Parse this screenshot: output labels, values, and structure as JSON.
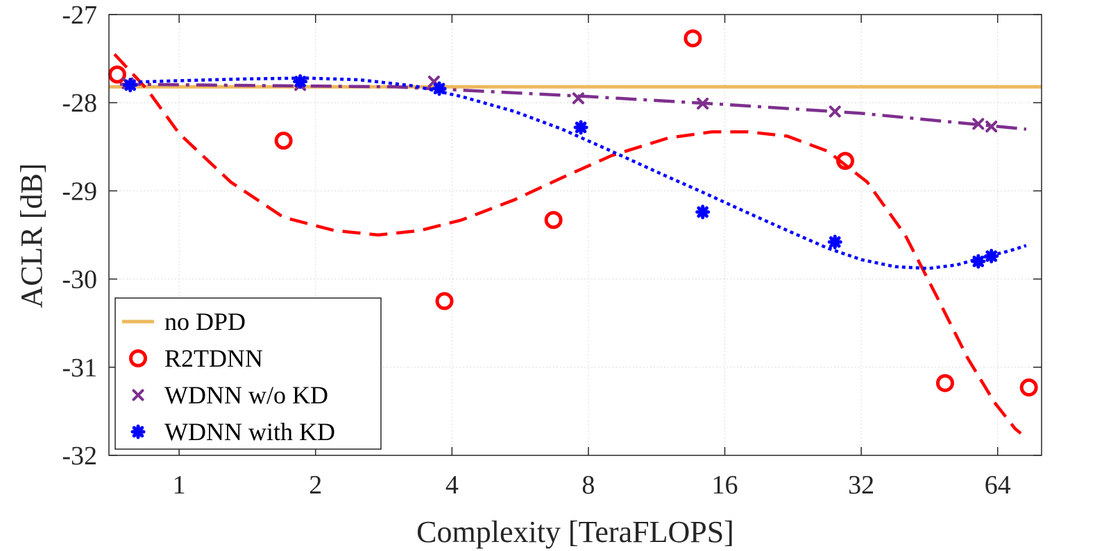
{
  "chart_data": {
    "type": "scatter",
    "title": "",
    "xlabel": "Complexity [TeraFLOPS]",
    "ylabel": "ACLR [dB]",
    "xscale": "log2",
    "xlim": [
      0.7,
      80
    ],
    "ylim": [
      -32,
      -27
    ],
    "xticks": [
      1,
      2,
      4,
      8,
      16,
      32,
      64
    ],
    "yticks": [
      -27,
      -28,
      -29,
      -30,
      -31,
      -32
    ],
    "grid": true,
    "legend_position": "bottom-left",
    "series": [
      {
        "name": "no DPD",
        "kind": "hline",
        "color": "#EDB95E",
        "value": -27.82
      },
      {
        "name": "R2TDNN",
        "kind": "markers",
        "marker": "circle",
        "color": "#FF0000",
        "points": [
          [
            0.73,
            -27.68
          ],
          [
            1.7,
            -28.43
          ],
          [
            3.85,
            -30.25
          ],
          [
            6.7,
            -29.33
          ],
          [
            13.6,
            -27.27
          ],
          [
            29.5,
            -28.66
          ],
          [
            49,
            -31.18
          ],
          [
            75,
            -31.23
          ]
        ],
        "fit": {
          "style": "dashed",
          "points": [
            [
              0.72,
              -27.45
            ],
            [
              0.85,
              -27.85
            ],
            [
              1.0,
              -28.35
            ],
            [
              1.3,
              -28.9
            ],
            [
              1.7,
              -29.3
            ],
            [
              2.2,
              -29.45
            ],
            [
              2.75,
              -29.5
            ],
            [
              3.4,
              -29.45
            ],
            [
              4.2,
              -29.33
            ],
            [
              5.5,
              -29.1
            ],
            [
              7.0,
              -28.85
            ],
            [
              9.0,
              -28.6
            ],
            [
              12.0,
              -28.4
            ],
            [
              15.0,
              -28.33
            ],
            [
              18.0,
              -28.33
            ],
            [
              22.0,
              -28.38
            ],
            [
              27.0,
              -28.55
            ],
            [
              33.0,
              -28.9
            ],
            [
              40.0,
              -29.5
            ],
            [
              47.0,
              -30.2
            ],
            [
              55.0,
              -30.9
            ],
            [
              63.0,
              -31.4
            ],
            [
              70.0,
              -31.7
            ],
            [
              72.0,
              -31.75
            ]
          ]
        }
      },
      {
        "name": "WDNN w/o KD",
        "kind": "markers",
        "marker": "x",
        "color": "#7E2F8E",
        "points": [
          [
            0.77,
            -27.78
          ],
          [
            1.85,
            -27.8
          ],
          [
            3.65,
            -27.76
          ],
          [
            7.6,
            -27.95
          ],
          [
            14.3,
            -28.01
          ],
          [
            28,
            -28.1
          ],
          [
            58,
            -28.24
          ],
          [
            62,
            -28.27
          ]
        ],
        "fit": {
          "style": "dashdot",
          "points": [
            [
              0.74,
              -27.79
            ],
            [
              3.0,
              -27.82
            ],
            [
              8.0,
              -27.93
            ],
            [
              16.0,
              -28.02
            ],
            [
              32.0,
              -28.12
            ],
            [
              74.0,
              -28.3
            ]
          ]
        }
      },
      {
        "name": "WDNN with KD",
        "kind": "markers",
        "marker": "asterisk",
        "color": "#0000FF",
        "points": [
          [
            0.78,
            -27.8
          ],
          [
            1.85,
            -27.76
          ],
          [
            3.75,
            -27.84
          ],
          [
            7.7,
            -28.28
          ],
          [
            14.3,
            -29.24
          ],
          [
            28,
            -29.58
          ],
          [
            58,
            -29.8
          ],
          [
            62,
            -29.74
          ]
        ],
        "fit": {
          "style": "dotted",
          "points": [
            [
              0.76,
              -27.77
            ],
            [
              1.0,
              -27.75
            ],
            [
              1.4,
              -27.73
            ],
            [
              1.9,
              -27.72
            ],
            [
              2.5,
              -27.74
            ],
            [
              3.3,
              -27.81
            ],
            [
              4.2,
              -27.93
            ],
            [
              5.5,
              -28.1
            ],
            [
              7.0,
              -28.3
            ],
            [
              9.0,
              -28.55
            ],
            [
              11.5,
              -28.8
            ],
            [
              14.5,
              -29.03
            ],
            [
              18.0,
              -29.25
            ],
            [
              22.0,
              -29.45
            ],
            [
              27.0,
              -29.65
            ],
            [
              32.0,
              -29.78
            ],
            [
              38.0,
              -29.86
            ],
            [
              45.0,
              -29.88
            ],
            [
              52.0,
              -29.84
            ],
            [
              60.0,
              -29.75
            ],
            [
              68.0,
              -29.68
            ],
            [
              74.0,
              -29.62
            ]
          ]
        }
      }
    ]
  }
}
